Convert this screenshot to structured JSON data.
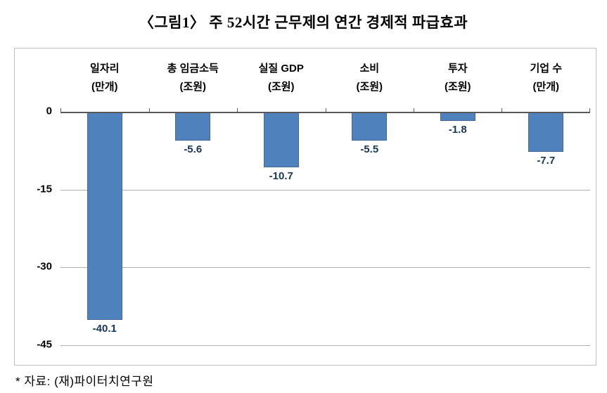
{
  "title": "〈그림1〉 주 52시간 근무제의 연간 경제적 파급효과",
  "source_note": "* 자료: (재)파이터치연구원",
  "chart_data": {
    "type": "bar",
    "title": "〈그림1〉 주 52시간 근무제의 연간 경제적 파급효과",
    "categories": [
      "일자리",
      "총 임금소득",
      "실질 GDP",
      "소비",
      "투자",
      "기업 수"
    ],
    "units": [
      "(만개)",
      "(조원)",
      "(조원)",
      "(조원)",
      "(조원)",
      "(만개)"
    ],
    "values": [
      -40.1,
      -5.6,
      -10.7,
      -5.5,
      -1.8,
      -7.7
    ],
    "data_labels": [
      "-40.1",
      "-5.6",
      "-10.7",
      "-5.5",
      "-1.8",
      "-7.7"
    ],
    "xlabel": "",
    "ylabel": "",
    "ylim": [
      -45,
      0
    ],
    "yticks": [
      0,
      -15,
      -30,
      -45
    ],
    "ytick_labels": [
      "0",
      "-15",
      "-30",
      "-45"
    ],
    "grid": true,
    "legend": "none",
    "bar_color": "#4f81bd",
    "data_label_color": "#17375d"
  }
}
